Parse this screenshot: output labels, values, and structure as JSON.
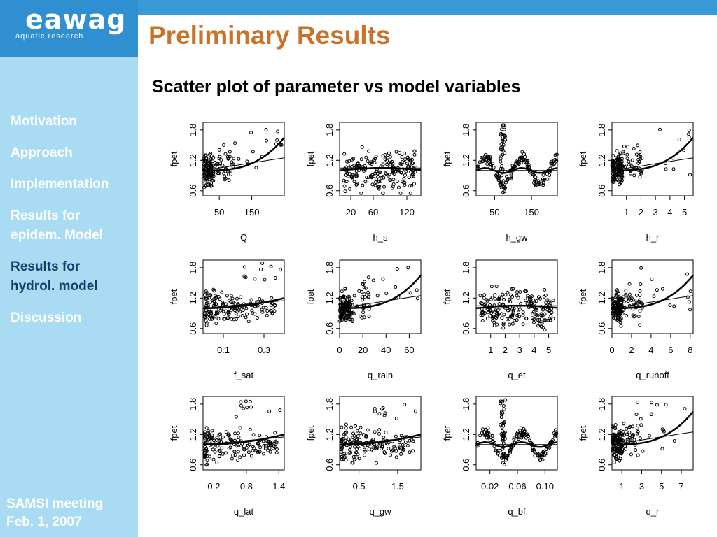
{
  "header": {
    "logo": "eawag",
    "logo_sub": "aquatic research",
    "title": "Preliminary Results"
  },
  "sidebar": {
    "items": [
      {
        "label": "Motivation",
        "lines": [
          "Motivation"
        ],
        "active": false
      },
      {
        "label": "Approach",
        "lines": [
          "Approach"
        ],
        "active": false
      },
      {
        "label": "Implementation",
        "lines": [
          "Implementation"
        ],
        "active": false
      },
      {
        "label": "Results for epidem. Model",
        "lines": [
          "Results for",
          "epidem. Model"
        ],
        "active": false
      },
      {
        "label": "Results for hydrol. model",
        "lines": [
          "Results for",
          "hydrol. model"
        ],
        "active": true
      },
      {
        "label": "Discussion",
        "lines": [
          "Discussion"
        ],
        "active": false
      }
    ],
    "footer_lines": [
      "SAMSI meeting",
      "Feb. 1, 2007"
    ]
  },
  "main": {
    "subtitle": "Scatter plot of parameter vs model variables"
  },
  "colors": {
    "topbar": "#3a9ad6",
    "sidebar": "#a9dbf3",
    "title": "#c8722a",
    "active_nav": "#143d6e"
  },
  "chart_data": [
    {
      "type": "scatter",
      "xlabel": "Q",
      "ylabel": "fpet",
      "xlim": [
        0,
        250
      ],
      "xticks": [
        "50",
        "150"
      ],
      "xtick_values": [
        50,
        150
      ],
      "ylim": [
        0.5,
        1.95
      ],
      "yticks": [
        "0.6",
        "1.2",
        "1.8"
      ],
      "ytick_values": [
        0.6,
        1.2,
        1.8
      ],
      "pattern": "left"
    },
    {
      "type": "scatter",
      "xlabel": "h_s",
      "ylabel": "fpet",
      "xlim": [
        0,
        145
      ],
      "xticks": [
        "20",
        "60",
        "120"
      ],
      "xtick_values": [
        20,
        60,
        120
      ],
      "ylim": [
        0.5,
        1.95
      ],
      "yticks": [
        "0.6",
        "1.2",
        "1.8"
      ],
      "ytick_values": [
        0.6,
        1.2,
        1.8
      ],
      "pattern": "cloud"
    },
    {
      "type": "scatter",
      "xlabel": "h_gw",
      "ylabel": "fpet",
      "xlim": [
        0,
        220
      ],
      "xticks": [
        "50",
        "150"
      ],
      "xtick_values": [
        50,
        150
      ],
      "ylim": [
        0.5,
        1.95
      ],
      "yticks": [
        "0.6",
        "1.2",
        "1.8"
      ],
      "ytick_values": [
        0.6,
        1.2,
        1.8
      ],
      "pattern": "wave"
    },
    {
      "type": "scatter",
      "xlabel": "h_r",
      "ylabel": "fpet",
      "xlim": [
        0,
        5.6
      ],
      "xticks": [
        "1",
        "2",
        "3",
        "4",
        "5"
      ],
      "xtick_values": [
        1,
        2,
        3,
        4,
        5
      ],
      "ylim": [
        0.5,
        1.95
      ],
      "yticks": [
        "0.6",
        "1.2",
        "1.8"
      ],
      "ytick_values": [
        0.6,
        1.2,
        1.8
      ],
      "pattern": "left"
    },
    {
      "type": "scatter",
      "xlabel": "f_sat",
      "ylabel": "fpet",
      "xlim": [
        0,
        0.4
      ],
      "xticks": [
        "0.1",
        "0.3"
      ],
      "xtick_values": [
        0.1,
        0.3
      ],
      "ylim": [
        0.5,
        1.95
      ],
      "yticks": [
        "0.6",
        "1.2",
        "1.8"
      ],
      "ytick_values": [
        0.6,
        1.2,
        1.8
      ],
      "pattern": "spread"
    },
    {
      "type": "scatter",
      "xlabel": "q_rain",
      "ylabel": "fpet",
      "xlim": [
        0,
        70
      ],
      "xticks": [
        "0",
        "20",
        "40",
        "60"
      ],
      "xtick_values": [
        0,
        20,
        40,
        60
      ],
      "ylim": [
        0.5,
        1.95
      ],
      "yticks": [
        "0.6",
        "1.2",
        "1.8"
      ],
      "ytick_values": [
        0.6,
        1.2,
        1.8
      ],
      "pattern": "left"
    },
    {
      "type": "scatter",
      "xlabel": "q_et",
      "ylabel": "fpet",
      "xlim": [
        0,
        5.6
      ],
      "xticks": [
        "1",
        "2",
        "3",
        "4",
        "5"
      ],
      "xtick_values": [
        1,
        2,
        3,
        4,
        5
      ],
      "ylim": [
        0.5,
        1.95
      ],
      "yticks": [
        "0.6",
        "1.2",
        "1.8"
      ],
      "ytick_values": [
        0.6,
        1.2,
        1.8
      ],
      "pattern": "cloud"
    },
    {
      "type": "scatter",
      "xlabel": "q_runoff",
      "ylabel": "fpet",
      "xlim": [
        0,
        8.3
      ],
      "xticks": [
        "0",
        "2",
        "4",
        "6",
        "8"
      ],
      "xtick_values": [
        0,
        2,
        4,
        6,
        8
      ],
      "ylim": [
        0.5,
        1.95
      ],
      "yticks": [
        "0.6",
        "1.2",
        "1.8"
      ],
      "ytick_values": [
        0.6,
        1.2,
        1.8
      ],
      "pattern": "left"
    },
    {
      "type": "scatter",
      "xlabel": "q_lat",
      "ylabel": "fpet",
      "xlim": [
        0,
        1.5
      ],
      "xticks": [
        "0.2",
        "0.8",
        "1.4"
      ],
      "xtick_values": [
        0.2,
        0.8,
        1.4
      ],
      "ylim": [
        0.5,
        1.95
      ],
      "yticks": [
        "0.6",
        "1.2",
        "1.8"
      ],
      "ytick_values": [
        0.6,
        1.2,
        1.8
      ],
      "pattern": "spread"
    },
    {
      "type": "scatter",
      "xlabel": "q_gw",
      "ylabel": "fpet",
      "xlim": [
        0,
        2.1
      ],
      "xticks": [
        "0.5",
        "1.5"
      ],
      "xtick_values": [
        0.5,
        1.5
      ],
      "ylim": [
        0.5,
        1.95
      ],
      "yticks": [
        "0.6",
        "1.2",
        "1.8"
      ],
      "ytick_values": [
        0.6,
        1.2,
        1.8
      ],
      "pattern": "spread"
    },
    {
      "type": "scatter",
      "xlabel": "q_bf",
      "ylabel": "fpet",
      "xlim": [
        0,
        0.118
      ],
      "xticks": [
        "0.02",
        "0.06",
        "0.10"
      ],
      "xtick_values": [
        0.02,
        0.06,
        0.1
      ],
      "ylim": [
        0.5,
        1.95
      ],
      "yticks": [
        "0.6",
        "1.2",
        "1.8"
      ],
      "ytick_values": [
        0.6,
        1.2,
        1.8
      ],
      "pattern": "wave"
    },
    {
      "type": "scatter",
      "xlabel": "q_r",
      "ylabel": "fpet",
      "xlim": [
        0,
        8.2
      ],
      "xticks": [
        "1",
        "3",
        "5",
        "7"
      ],
      "xtick_values": [
        1,
        3,
        5,
        7
      ],
      "ylim": [
        0.5,
        1.95
      ],
      "yticks": [
        "0.6",
        "1.2",
        "1.8"
      ],
      "ytick_values": [
        0.6,
        1.2,
        1.8
      ],
      "pattern": "left"
    }
  ]
}
